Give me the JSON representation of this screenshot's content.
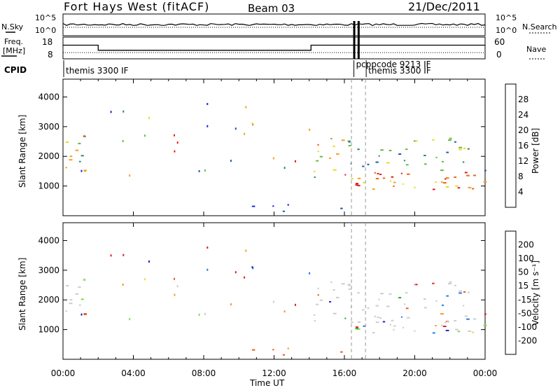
{
  "header": {
    "station": "Fort Hays West (fitACF)",
    "beam": "Beam 03",
    "date": "21/Dec/2011"
  },
  "top_panels": {
    "nsky_label": "N.Sky",
    "nsearch_label": "N.Search",
    "freq_label_line1": "Freq.",
    "freq_label_line2": "[MHz]",
    "nave_label": "Nave",
    "cpid_label": "CPID",
    "noise_ticks_left": [
      "10^5",
      "10^0"
    ],
    "noise_ticks_right": [
      "10^5",
      "10^0"
    ],
    "freq_ticks_left": [
      "18",
      "8"
    ],
    "freq_ticks_right": [
      "60",
      "0"
    ],
    "cpid_entries": [
      {
        "text": "themis 3300 IF",
        "hour": 0.0
      },
      {
        "text": "pcppcode 9213 IF",
        "hour": 16.5
      },
      {
        "text": "themis 3300 IF",
        "hour": 17.2
      }
    ],
    "freq_trace": [
      [
        0,
        14.6
      ],
      [
        2.0,
        14.6
      ],
      [
        2.0,
        12.0
      ],
      [
        14.1,
        12.0
      ],
      [
        14.1,
        14.6
      ],
      [
        24,
        14.6
      ]
    ],
    "nave_level": 17
  },
  "chart_data": [
    {
      "type": "heatmap",
      "title": "Power",
      "ylabel": "Slant Range [km]",
      "xlabel": "",
      "xlim": [
        0,
        24
      ],
      "ylim": [
        0,
        4600
      ],
      "colorbar_label": "Power [dB]",
      "colorbar_ticks": [
        "4",
        "8",
        "12",
        "16",
        "20",
        "24",
        "28"
      ],
      "colorbar_colors": [
        "#1428e0",
        "#1f5aa8",
        "#2f8a66",
        "#66bb44",
        "#e8dc1c",
        "#f5a01e",
        "#f06418",
        "#e41c1c"
      ],
      "regions": [
        {
          "t0": 0.1,
          "t1": 1.3,
          "r0": 1500,
          "r1": 2800,
          "dense": 0.8,
          "power": 14
        },
        {
          "t0": 1.3,
          "t1": 1.6,
          "r0": 2400,
          "r1": 2650,
          "dense": 0.6,
          "power": 6
        },
        {
          "t0": 14.0,
          "t1": 16.0,
          "r0": 1200,
          "r1": 2700,
          "dense": 0.45,
          "power": 16
        },
        {
          "t0": 16.0,
          "t1": 24.0,
          "r0": 900,
          "r1": 1500,
          "dense": 0.9,
          "power": 22
        },
        {
          "t0": 16.0,
          "t1": 24.0,
          "r0": 1500,
          "r1": 2700,
          "dense": 0.4,
          "power": 10
        },
        {
          "t0": 2.0,
          "t1": 16.0,
          "r0": 150,
          "r1": 400,
          "dense": 0.15,
          "power": 8
        }
      ]
    },
    {
      "type": "heatmap",
      "title": "Velocity",
      "ylabel": "Slant Range [km]",
      "xlabel": "Time UT",
      "xlim": [
        0,
        24
      ],
      "ylim": [
        0,
        4600
      ],
      "colorbar_label": "Velocity [m s⁻¹]",
      "colorbar_ticks": [
        "200",
        "100",
        "50",
        "15",
        "-15",
        "-50",
        "-100",
        "-200"
      ],
      "colorbar_colors": [
        "#1c28c8",
        "#2878e0",
        "#2ea82e",
        "#80dc50",
        "#cccccc",
        "#f8d830",
        "#f59a1e",
        "#f05a14",
        "#e41c1c"
      ],
      "x_ticks": [
        "00:00",
        "04:00",
        "08:00",
        "12:00",
        "16:00",
        "20:00",
        "00:00"
      ]
    }
  ]
}
